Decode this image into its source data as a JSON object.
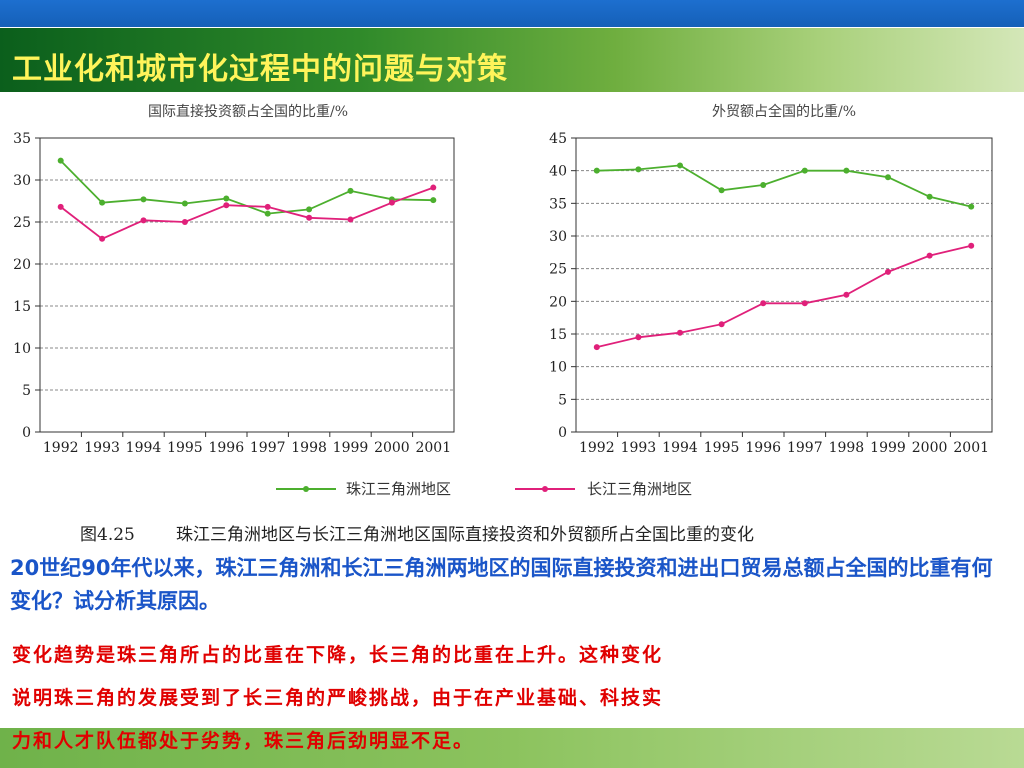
{
  "slide": {
    "title": "工业化和城市化过程中的问题与对策",
    "question": "20世纪90年代以来，珠江三角洲和长江三角洲两地区的国际直接投资和进出口贸易总额占全国的比重有何变化？试分析其原因。",
    "answer_lines": [
      "变化趋势是珠三角所占的比重在下降，长三角的比重在上升。这种变化",
      "说明珠三角的发展受到了长三角的严峻挑战，由于在产业基础、科技实",
      "力和人才队伍都处于劣势，珠三角后劲明显不足。"
    ]
  },
  "figure": {
    "caption_num": "图4.25",
    "caption_text": "珠江三角洲地区与长江三角洲地区国际直接投资和外贸额所占全国比重的变化",
    "legend": [
      "珠江三角洲地区",
      "长江三角洲地区"
    ]
  },
  "colors": {
    "pearl": "#4caf2e",
    "yangtze": "#e0207a",
    "title": "#fff45a",
    "question": "#1a55c8",
    "answer": "#e00000"
  },
  "chart_data": [
    {
      "type": "line",
      "title": "国际直接投资额占全国的比重/%",
      "categories": [
        "1992",
        "1993",
        "1994",
        "1995",
        "1996",
        "1997",
        "1998",
        "1999",
        "2000",
        "2001"
      ],
      "ylim": [
        0,
        35
      ],
      "yticks": [
        0,
        5,
        10,
        15,
        20,
        25,
        30,
        35
      ],
      "grid": "horizontal dashed",
      "series": [
        {
          "name": "珠江三角洲地区",
          "values": [
            32.3,
            27.3,
            27.7,
            27.2,
            27.8,
            26.0,
            26.5,
            28.7,
            27.7,
            27.6
          ]
        },
        {
          "name": "长江三角洲地区",
          "values": [
            26.8,
            23.0,
            25.2,
            25.0,
            27.0,
            26.8,
            25.5,
            25.3,
            27.3,
            29.1
          ]
        }
      ]
    },
    {
      "type": "line",
      "title": "外贸额占全国的比重/%",
      "categories": [
        "1992",
        "1993",
        "1994",
        "1995",
        "1996",
        "1997",
        "1998",
        "1999",
        "2000",
        "2001"
      ],
      "ylim": [
        0,
        45
      ],
      "yticks": [
        0,
        5,
        10,
        15,
        20,
        25,
        30,
        35,
        40,
        45
      ],
      "grid": "horizontal dashed",
      "series": [
        {
          "name": "珠江三角洲地区",
          "values": [
            40.0,
            40.2,
            40.8,
            37.0,
            37.8,
            40.0,
            40.0,
            39.0,
            36.0,
            34.5
          ]
        },
        {
          "name": "长江三角洲地区",
          "values": [
            13.0,
            14.5,
            15.2,
            16.5,
            19.7,
            19.7,
            21.0,
            24.5,
            27.0,
            28.5
          ]
        }
      ]
    }
  ]
}
